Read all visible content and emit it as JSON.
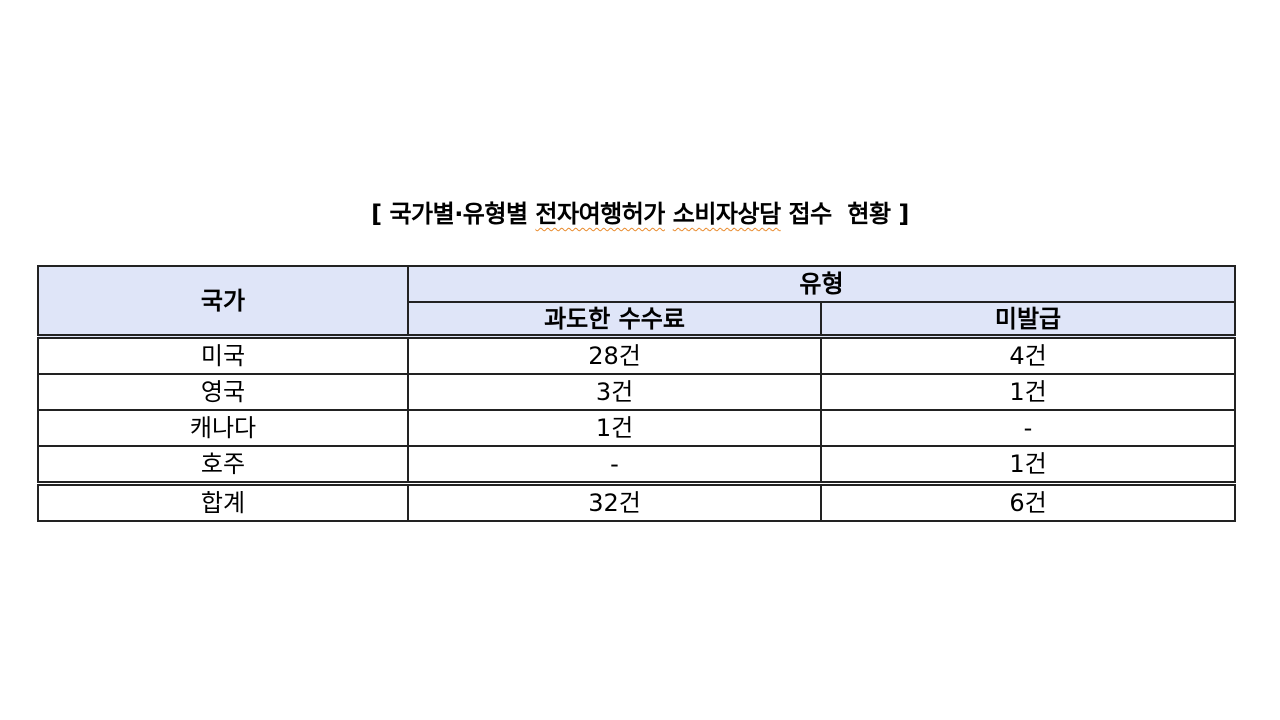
{
  "title": {
    "open": "[ ",
    "part1": "국가별·유형별 ",
    "part2": "전자여행허가",
    "part3": " ",
    "part4": "소비자상담",
    "part5": " 접수  현황",
    "close": " ]"
  },
  "table": {
    "headers": {
      "country": "국가",
      "type": "유형",
      "excess_fee": "과도한 수수료",
      "not_issued": "미발급"
    },
    "rows": [
      {
        "country": "미국",
        "excess_fee": "28건",
        "not_issued": "4건"
      },
      {
        "country": "영국",
        "excess_fee": "3건",
        "not_issued": "1건"
      },
      {
        "country": "캐나다",
        "excess_fee": "1건",
        "not_issued": "-"
      },
      {
        "country": "호주",
        "excess_fee": "-",
        "not_issued": "1건"
      }
    ],
    "total": {
      "country": "합계",
      "excess_fee": "32건",
      "not_issued": "6건"
    }
  },
  "colors": {
    "header_fill": "#dfe5f8",
    "spellcheck_underline": "#e8892a"
  }
}
